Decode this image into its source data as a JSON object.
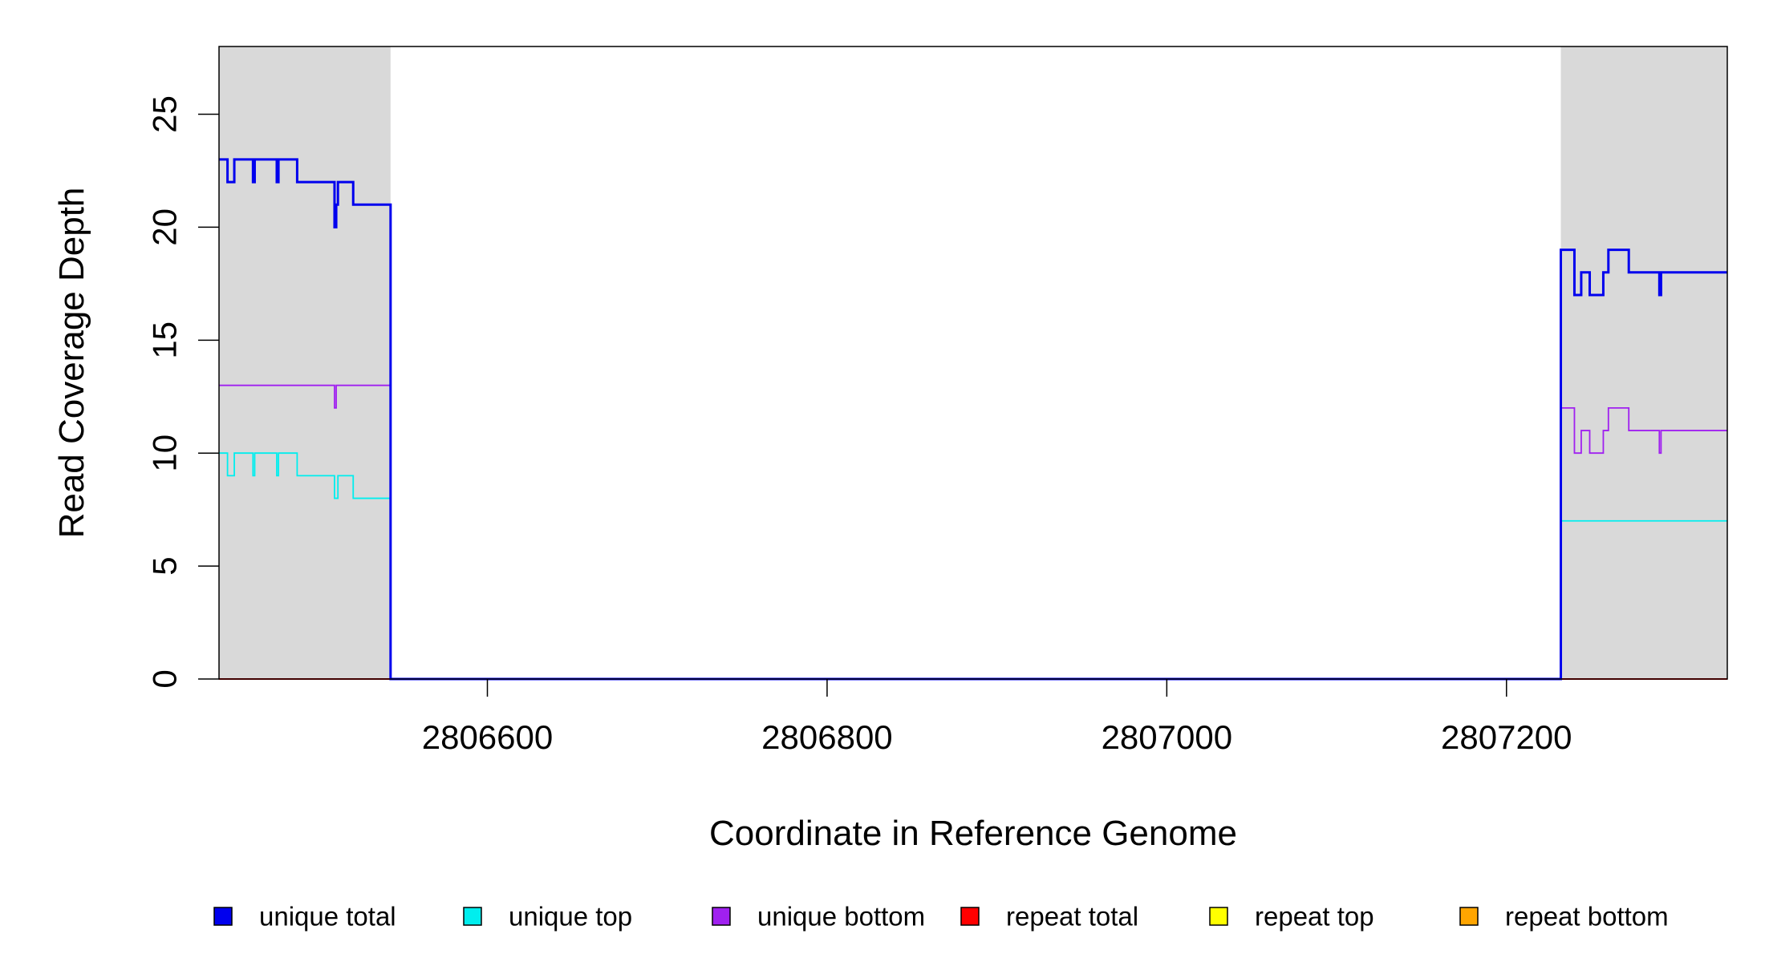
{
  "chart_data": {
    "type": "line",
    "title": "",
    "xlabel": "Coordinate in Reference Genome",
    "ylabel": "Read Coverage Depth",
    "xlim": [
      2806442,
      2807330
    ],
    "ylim": [
      0,
      28
    ],
    "x_ticks": [
      2806600,
      2806800,
      2807000,
      2807200
    ],
    "x_tick_labels": [
      "2806600",
      "2806800",
      "2807000",
      "2807200"
    ],
    "y_ticks": [
      0,
      5,
      10,
      15,
      20,
      25
    ],
    "y_tick_labels": [
      "0",
      "5",
      "10",
      "15",
      "20",
      "25"
    ],
    "grid": false,
    "legend_position": "bottom",
    "shaded_regions": [
      {
        "x_start": 2806442,
        "x_end": 2806543,
        "color": "#d9d9d9"
      },
      {
        "x_start": 2807232,
        "x_end": 2807330,
        "color": "#d9d9d9"
      }
    ],
    "series": [
      {
        "name": "unique total",
        "color": "#0000ee",
        "x": [
          2806442,
          2806447,
          2806447,
          2806451,
          2806451,
          2806462,
          2806462,
          2806463,
          2806463,
          2806476,
          2806476,
          2806477,
          2806477,
          2806488,
          2806488,
          2806510,
          2806510,
          2806511,
          2806511,
          2806512,
          2806512,
          2806521,
          2806521,
          2806543,
          2806543,
          2807232,
          2807232,
          2807240,
          2807240,
          2807244,
          2807244,
          2807249,
          2807249,
          2807257,
          2807257,
          2807260,
          2807260,
          2807272,
          2807272,
          2807290,
          2807290,
          2807291,
          2807291,
          2807330
        ],
        "y": [
          23,
          23,
          22,
          22,
          23,
          23,
          22,
          22,
          23,
          23,
          22,
          22,
          23,
          23,
          22,
          22,
          20,
          20,
          21,
          21,
          22,
          22,
          21,
          21,
          0,
          0,
          19,
          19,
          17,
          17,
          18,
          18,
          17,
          17,
          18,
          18,
          19,
          19,
          18,
          18,
          17,
          17,
          18,
          18
        ]
      },
      {
        "name": "unique top",
        "color": "#00eeee",
        "x": [
          2806442,
          2806447,
          2806447,
          2806451,
          2806451,
          2806462,
          2806462,
          2806463,
          2806463,
          2806476,
          2806476,
          2806477,
          2806477,
          2806488,
          2806488,
          2806510,
          2806510,
          2806512,
          2806512,
          2806521,
          2806521,
          2806543,
          2806543,
          2807232,
          2807232,
          2807330
        ],
        "y": [
          10,
          10,
          9,
          9,
          10,
          10,
          9,
          9,
          10,
          10,
          9,
          9,
          10,
          10,
          9,
          9,
          8,
          8,
          9,
          9,
          8,
          8,
          0,
          0,
          7,
          7
        ]
      },
      {
        "name": "unique bottom",
        "color": "#a020f0",
        "x": [
          2806442,
          2806510,
          2806510,
          2806511,
          2806511,
          2806543,
          2806543,
          2807232,
          2807232,
          2807240,
          2807240,
          2807244,
          2807244,
          2807249,
          2807249,
          2807257,
          2807257,
          2807260,
          2807260,
          2807272,
          2807272,
          2807290,
          2807290,
          2807291,
          2807291,
          2807330
        ],
        "y": [
          13,
          13,
          12,
          12,
          13,
          13,
          0,
          0,
          12,
          12,
          10,
          10,
          11,
          11,
          10,
          10,
          11,
          11,
          12,
          12,
          11,
          11,
          10,
          10,
          11,
          11
        ]
      },
      {
        "name": "repeat total",
        "color": "#ff0000",
        "x": [
          2806442,
          2807330
        ],
        "y": [
          0,
          0
        ]
      },
      {
        "name": "repeat top",
        "color": "#ffff00",
        "x": [
          2806442,
          2807330
        ],
        "y": [
          0,
          0
        ]
      },
      {
        "name": "repeat bottom",
        "color": "#ffa500",
        "x": [
          2806442,
          2807330
        ],
        "y": [
          0,
          0
        ]
      }
    ]
  }
}
